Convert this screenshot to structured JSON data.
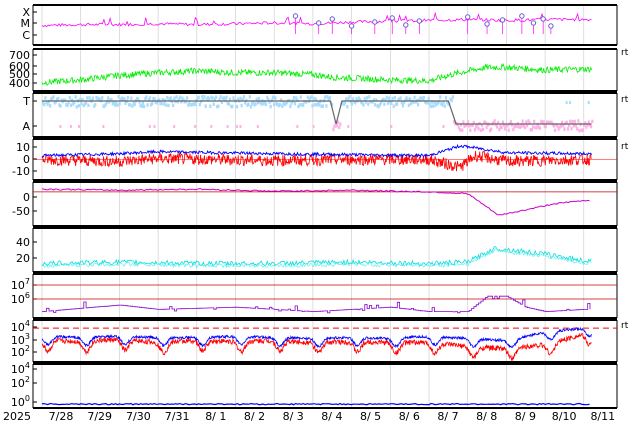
{
  "chart_data": [
    {
      "type": "line",
      "panel": "xray-flare",
      "yticks": [
        "X",
        "M",
        "C"
      ],
      "series": [
        {
          "color": "#ff00ff"
        }
      ],
      "baseline": [
        2.2,
        2.3,
        2.3,
        2.4,
        2.3,
        2.4,
        2.5,
        2.4,
        2.6,
        2.7,
        2.8,
        2.9,
        2.8,
        2.9
      ],
      "flare_markers_day": [
        6.55,
        7.15,
        7.5,
        8.0,
        8.6,
        9.05,
        9.4,
        9.75,
        11.0,
        11.5,
        11.9,
        12.4,
        12.7,
        12.95,
        13.15
      ],
      "marker_color": "#6a5acd"
    },
    {
      "type": "line",
      "panel": "solar-wind-speed",
      "yticks": [
        700,
        600,
        500,
        400
      ],
      "ylim": [
        330,
        730
      ],
      "x_days": [
        0,
        1,
        2,
        3,
        4,
        5,
        6,
        7,
        7.5,
        8,
        9,
        10,
        10.5,
        11,
        11.5,
        12,
        13,
        14
      ],
      "values": [
        390,
        420,
        470,
        500,
        520,
        500,
        500,
        480,
        450,
        440,
        420,
        410,
        470,
        520,
        560,
        560,
        530,
        540
      ],
      "series": [
        {
          "color": "#00ee00"
        }
      ]
    },
    {
      "type": "line",
      "panel": "imf-sector",
      "yticks": [
        "T",
        "A"
      ],
      "series": [
        {
          "color": "#a8dcff"
        },
        {
          "color": "#ffb0e6"
        },
        {
          "color": "#666666"
        }
      ],
      "sector_changes_day": [
        7.5,
        7.7,
        10.6
      ]
    },
    {
      "type": "line",
      "panel": "imf-bt-bz",
      "yticks": [
        10,
        0,
        -10
      ],
      "ylim": [
        -18,
        18
      ],
      "series": [
        {
          "color": "#0000ff",
          "x_days": [
            0,
            2,
            3,
            6,
            8,
            10,
            10.8,
            11.2,
            12,
            14
          ],
          "values": [
            4,
            6,
            8,
            6,
            5,
            4,
            14,
            12,
            7,
            6
          ]
        },
        {
          "color": "#ff0000",
          "x_days": [
            0,
            2,
            3,
            6,
            8,
            10,
            10.8,
            11.2,
            12,
            14
          ],
          "values": [
            0,
            -2,
            1,
            -1,
            0,
            0,
            -8,
            4,
            -2,
            0
          ]
        }
      ]
    },
    {
      "type": "line",
      "panel": "dst",
      "yticks": [
        0,
        -50
      ],
      "ylim": [
        -90,
        20
      ],
      "series": [
        {
          "color": "#cc00cc",
          "x_days": [
            0,
            2,
            4,
            6,
            8,
            10,
            11,
            11.8,
            12.5,
            13.2,
            14
          ],
          "values": [
            8,
            5,
            8,
            2,
            5,
            0,
            -5,
            -68,
            -52,
            -35,
            -25
          ]
        }
      ]
    },
    {
      "type": "line",
      "panel": "kp",
      "yticks": [
        40,
        20
      ],
      "ylim": [
        0,
        55
      ],
      "series": [
        {
          "color": "#00dddd",
          "x_days": [
            0,
            2,
            4,
            6,
            8,
            10,
            11,
            11.7,
            12.5,
            13.2,
            14
          ],
          "values": [
            8,
            10,
            8,
            8,
            10,
            8,
            10,
            30,
            25,
            20,
            12
          ]
        }
      ]
    },
    {
      "type": "line",
      "panel": "proton-flux",
      "yticks": [
        "10^7",
        "10^6"
      ],
      "ylim": [
        0,
        1
      ],
      "series": [
        {
          "color": "#8800cc",
          "x_days": [
            0,
            2,
            3,
            5,
            7,
            9,
            10,
            11,
            11.5,
            12,
            12.5,
            13,
            14
          ],
          "values": [
            0.2,
            0.5,
            0.3,
            0.4,
            0.2,
            0.4,
            0.2,
            0.2,
            0.9,
            0.9,
            0.4,
            0.2,
            0.3
          ]
        }
      ]
    },
    {
      "type": "line",
      "panel": "electron-flux",
      "yticks": [
        "10^4",
        "10^3",
        "10^2"
      ],
      "ylim": [
        1,
        4.5
      ],
      "threshold": 4,
      "series": [
        {
          "color": "#0000ff",
          "x_days": [
            0,
            1,
            2,
            3,
            4,
            5,
            6,
            7,
            8,
            9,
            10,
            11,
            12,
            13,
            14
          ],
          "values": [
            3.2,
            3.1,
            3.2,
            3.1,
            3.1,
            3.2,
            3.1,
            3.0,
            3.1,
            3.0,
            3.2,
            3.0,
            2.8,
            3.6,
            4.0
          ]
        },
        {
          "color": "#ff0000",
          "x_days": [
            0,
            1,
            2,
            3,
            4,
            5,
            6,
            7,
            8,
            9,
            10,
            11,
            12,
            13,
            14
          ],
          "values": [
            2.8,
            2.7,
            2.9,
            2.6,
            2.8,
            2.7,
            2.8,
            2.6,
            2.7,
            2.6,
            2.6,
            2.2,
            2.0,
            2.4,
            3.4
          ]
        }
      ]
    },
    {
      "type": "line",
      "panel": "low-flux",
      "yticks": [
        "10^4",
        "10^2",
        "10^0"
      ],
      "ylim": [
        0,
        4.5
      ],
      "series": [
        {
          "color": "#0000ff",
          "x_days": [
            0,
            14
          ],
          "values": [
            0.1,
            0.1
          ]
        }
      ]
    }
  ],
  "x_axis": {
    "start_label": "2025",
    "tick_labels": [
      "7/28",
      "7/29",
      "7/30",
      "7/31",
      "8/ 1",
      "8/ 2",
      "8/ 3",
      "8/ 4",
      "8/ 5",
      "8/ 6",
      "8/ 7",
      "8/ 8",
      "8/ 9",
      "8/10",
      "8/11"
    ]
  },
  "side_marks": [
    "rt",
    "rt",
    "rt",
    "rt"
  ]
}
